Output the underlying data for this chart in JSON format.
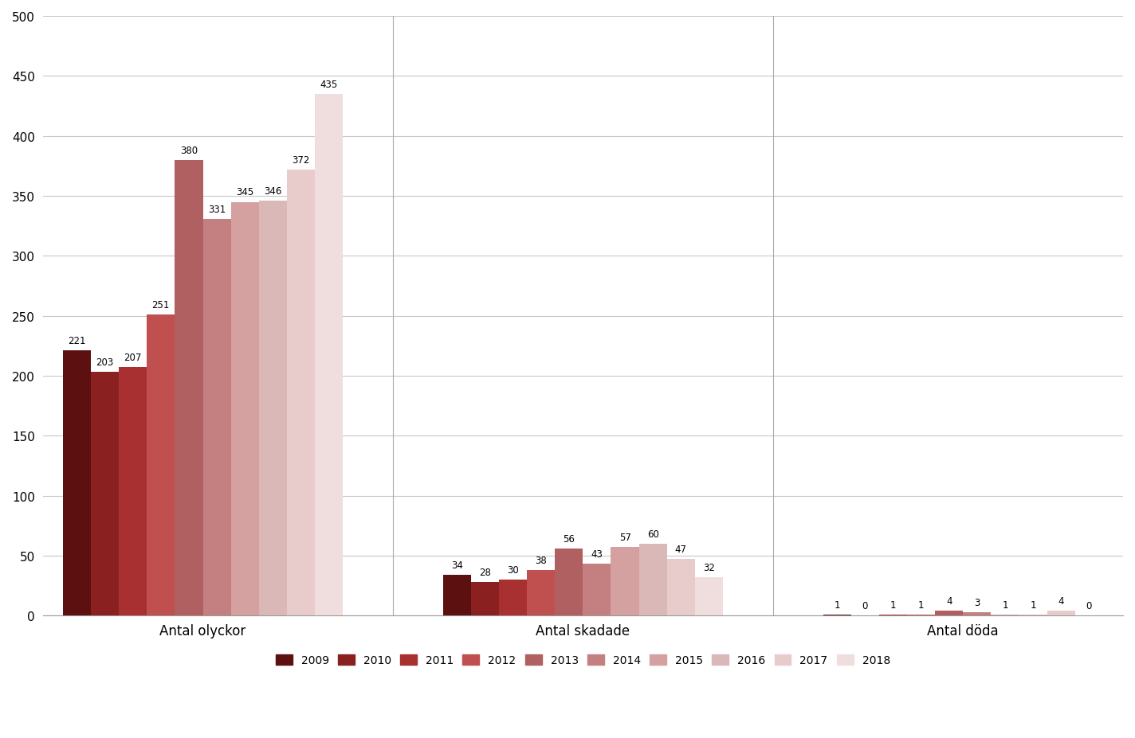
{
  "years": [
    "2009",
    "2010",
    "2011",
    "2012",
    "2013",
    "2014",
    "2015",
    "2016",
    "2017",
    "2018"
  ],
  "colors": [
    "#5c1010",
    "#8b2020",
    "#a83030",
    "#c05050",
    "#b06060",
    "#c48080",
    "#d4a0a0",
    "#dbb8b8",
    "#e8cccc",
    "#f0dede"
  ],
  "olyckor_values": [
    221,
    203,
    207,
    251,
    380,
    331,
    345,
    346,
    372,
    435
  ],
  "skadade_values": [
    34,
    28,
    30,
    38,
    56,
    43,
    57,
    60,
    47,
    32
  ],
  "doda_values": [
    1,
    0,
    1,
    1,
    4,
    3,
    1,
    1,
    4,
    0
  ],
  "group_labels": [
    "Antal olyckor",
    "Antal skadade",
    "Antal döda"
  ],
  "ylim": [
    0,
    500
  ],
  "yticks": [
    0,
    50,
    100,
    150,
    200,
    250,
    300,
    350,
    400,
    450,
    500
  ],
  "background_color": "#ffffff",
  "grid_color": "#c8c8c8"
}
